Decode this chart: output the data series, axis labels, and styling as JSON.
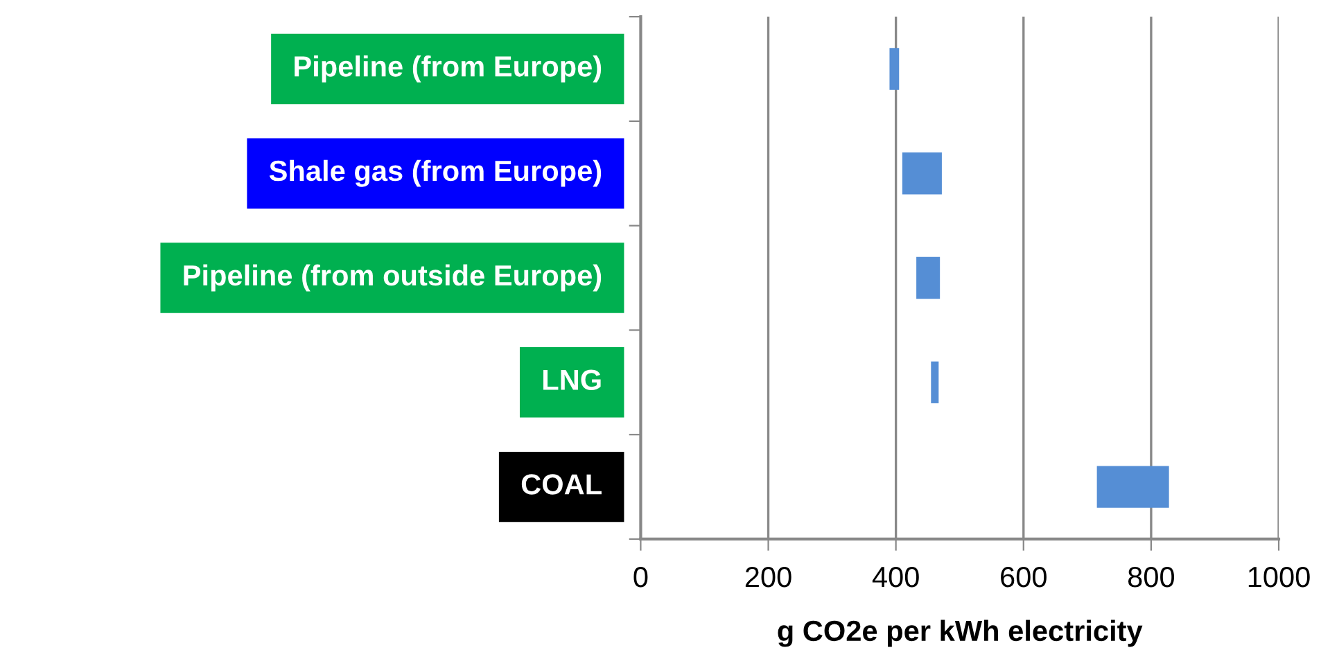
{
  "chart_data": {
    "type": "bar",
    "orientation": "horizontal",
    "categories": [
      "Pipeline (from Europe)",
      "Shale gas (from Europe)",
      "Pipeline (from outside Europe)",
      "LNG",
      "COAL"
    ],
    "base": [
      390,
      410,
      432,
      455,
      715
    ],
    "values": [
      15,
      62,
      37,
      12,
      113
    ],
    "color": "#558ed5",
    "xlabel": "g CO2e per kWh electricity",
    "xlim": [
      0,
      1000
    ],
    "xticks": [
      0,
      200,
      400,
      600,
      800,
      1000
    ],
    "grid": "x"
  }
}
